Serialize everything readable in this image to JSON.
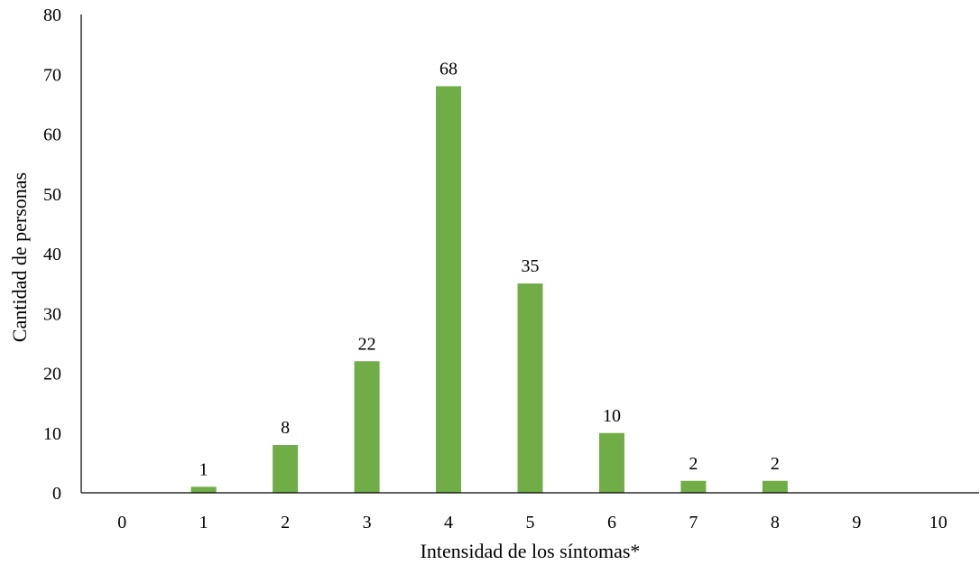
{
  "chart_data": {
    "type": "bar",
    "categories": [
      "0",
      "1",
      "2",
      "3",
      "4",
      "5",
      "6",
      "7",
      "8",
      "9",
      "10"
    ],
    "values": [
      0,
      1,
      8,
      22,
      68,
      35,
      10,
      2,
      2,
      0,
      0
    ],
    "data_labels": [
      "",
      "1",
      "8",
      "22",
      "68",
      "35",
      "10",
      "2",
      "2",
      "",
      ""
    ],
    "title": "",
    "xlabel": "Intensidad de los síntomas*",
    "ylabel": "Cantidad de personas",
    "ylim": [
      0,
      80
    ],
    "yticks": [
      "0",
      "10",
      "20",
      "30",
      "40",
      "50",
      "60",
      "70",
      "80"
    ],
    "grid": false,
    "legend": "none",
    "bar_color": "#70ad47"
  }
}
